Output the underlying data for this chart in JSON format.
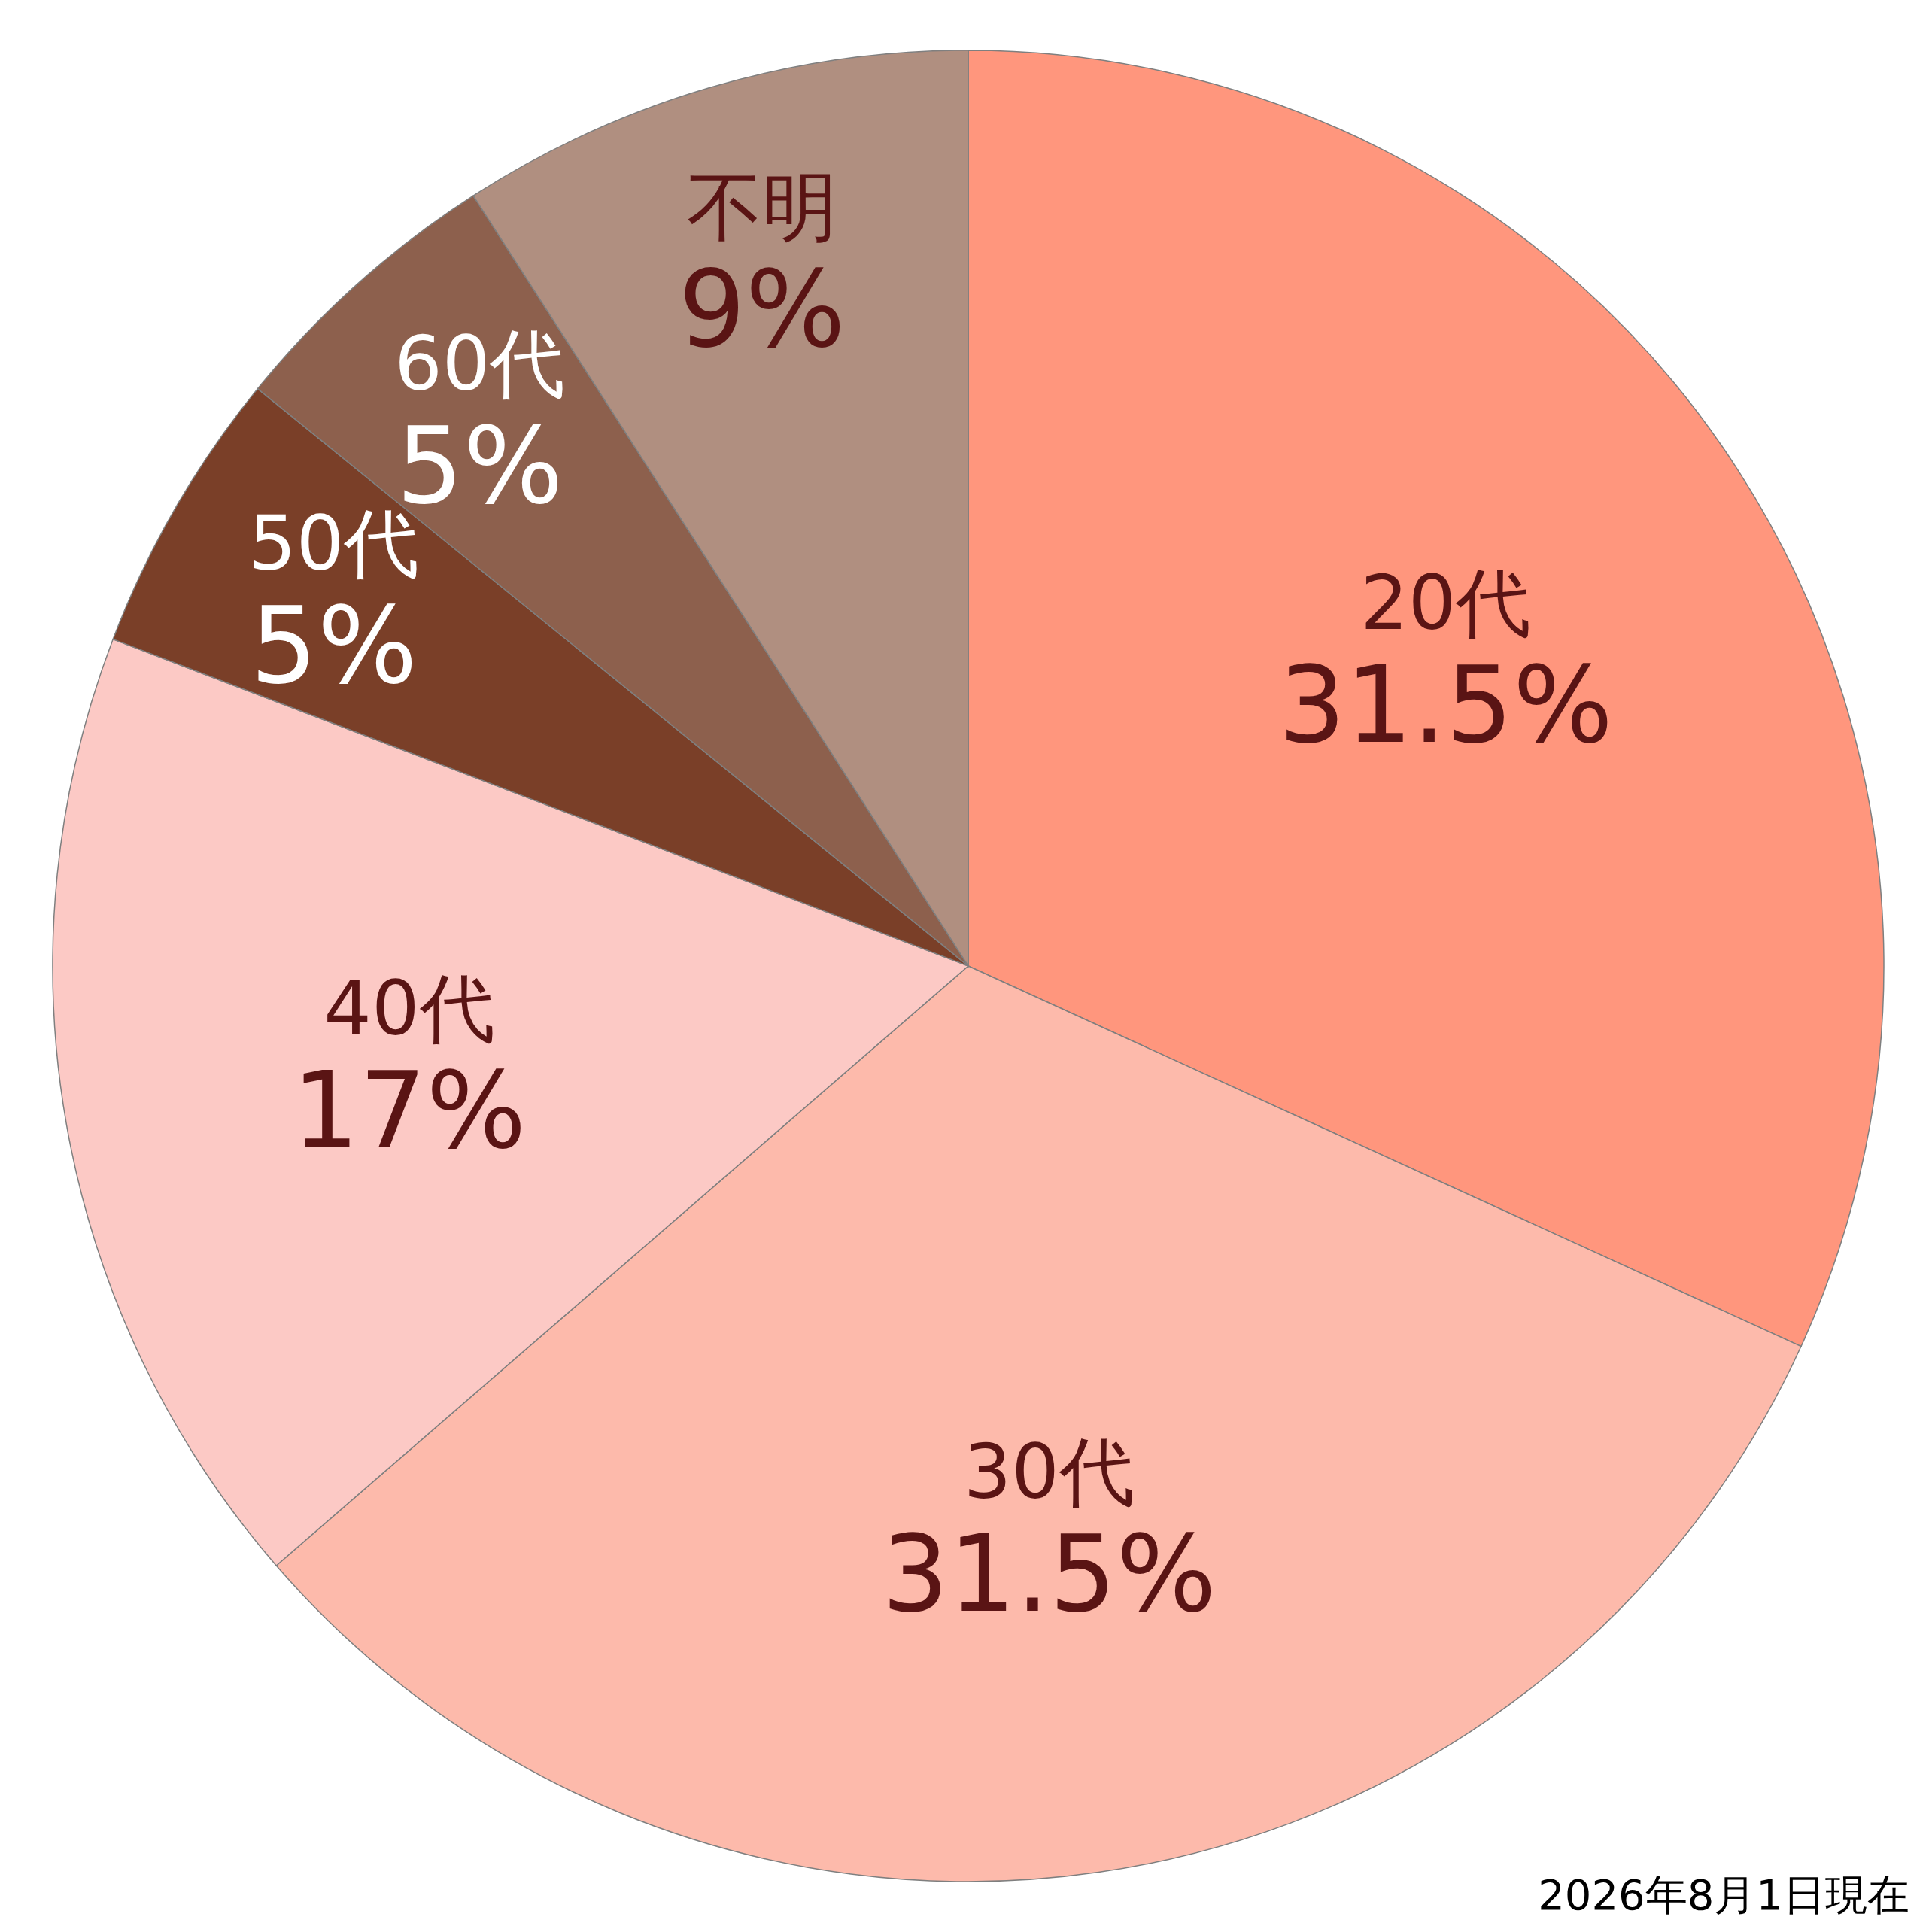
{
  "chart_data": {
    "type": "pie",
    "categories": [
      "20代",
      "30代",
      "40代",
      "50代",
      "60代",
      "不明"
    ],
    "values": [
      31.5,
      31.5,
      17,
      5,
      5,
      9
    ],
    "value_labels": [
      "31.5%",
      "31.5%",
      "17%",
      "5%",
      "5%",
      "9%"
    ],
    "colors": [
      "#ff967d",
      "#fdbaab",
      "#fcc9c5",
      "#7a3f28",
      "#8d604d",
      "#b08f80"
    ],
    "annotations": [
      "2026年8月1日現在"
    ],
    "legend": false
  }
}
